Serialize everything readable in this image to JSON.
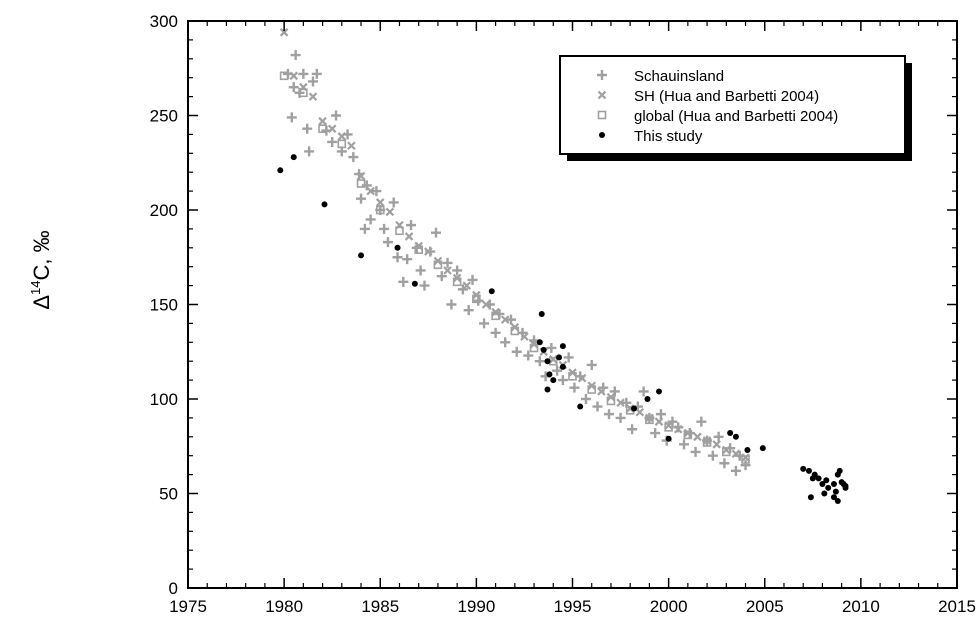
{
  "chart_data": {
    "type": "scatter",
    "ylabel": {
      "prefix": "Δ",
      "superscript": "14",
      "suffix": "C, ‰"
    },
    "xlim": [
      1975,
      2015
    ],
    "ylim": [
      0,
      300
    ],
    "x_ticks": [
      1975,
      1980,
      1985,
      1990,
      1995,
      2000,
      2005,
      2010,
      2015
    ],
    "y_ticks": [
      0,
      50,
      100,
      150,
      200,
      250,
      300
    ],
    "legend": {
      "position": "top-right",
      "entries": [
        {
          "label": "Schauinsland",
          "marker": "plus",
          "color": "#a0a0a0"
        },
        {
          "label": "SH (Hua and Barbetti 2004)",
          "marker": "x",
          "color": "#a0a0a0"
        },
        {
          "label": "global (Hua and Barbetti 2004)",
          "marker": "square",
          "color": "#a0a0a0"
        },
        {
          "label": "This study",
          "marker": "dot",
          "color": "#000000"
        }
      ]
    },
    "series": [
      {
        "name": "Schauinsland",
        "marker": "plus",
        "color": "#a0a0a0",
        "points": [
          [
            1980.2,
            272
          ],
          [
            1980.4,
            249
          ],
          [
            1980.5,
            265
          ],
          [
            1980.6,
            282
          ],
          [
            1980.8,
            262
          ],
          [
            1981.0,
            272
          ],
          [
            1981.2,
            243
          ],
          [
            1981.3,
            231
          ],
          [
            1981.5,
            268
          ],
          [
            1981.7,
            272
          ],
          [
            1982.2,
            242
          ],
          [
            1982.5,
            236
          ],
          [
            1982.7,
            250
          ],
          [
            1983.0,
            231
          ],
          [
            1983.3,
            240
          ],
          [
            1983.6,
            228
          ],
          [
            1983.9,
            219
          ],
          [
            1984.0,
            206
          ],
          [
            1984.2,
            190
          ],
          [
            1984.3,
            213
          ],
          [
            1984.5,
            195
          ],
          [
            1984.8,
            210
          ],
          [
            1985.0,
            200
          ],
          [
            1985.2,
            190
          ],
          [
            1985.4,
            183
          ],
          [
            1985.7,
            204
          ],
          [
            1985.9,
            175
          ],
          [
            1986.2,
            162
          ],
          [
            1986.4,
            174
          ],
          [
            1986.6,
            192
          ],
          [
            1986.9,
            180
          ],
          [
            1987.1,
            168
          ],
          [
            1987.3,
            160
          ],
          [
            1987.6,
            178
          ],
          [
            1987.9,
            188
          ],
          [
            1988.2,
            165
          ],
          [
            1988.5,
            172
          ],
          [
            1988.7,
            150
          ],
          [
            1989.0,
            168
          ],
          [
            1989.3,
            158
          ],
          [
            1989.6,
            147
          ],
          [
            1989.8,
            163
          ],
          [
            1990.1,
            152
          ],
          [
            1990.4,
            140
          ],
          [
            1990.7,
            150
          ],
          [
            1991.0,
            135
          ],
          [
            1991.2,
            145
          ],
          [
            1991.5,
            130
          ],
          [
            1991.8,
            142
          ],
          [
            1992.1,
            125
          ],
          [
            1992.4,
            135
          ],
          [
            1992.7,
            123
          ],
          [
            1993.0,
            131
          ],
          [
            1993.3,
            120
          ],
          [
            1993.6,
            112
          ],
          [
            1993.9,
            127
          ],
          [
            1994.2,
            115
          ],
          [
            1994.5,
            110
          ],
          [
            1994.8,
            122
          ],
          [
            1995.1,
            106
          ],
          [
            1995.4,
            112
          ],
          [
            1995.7,
            100
          ],
          [
            1996.0,
            118
          ],
          [
            1996.3,
            96
          ],
          [
            1996.6,
            106
          ],
          [
            1996.9,
            92
          ],
          [
            1997.2,
            104
          ],
          [
            1997.5,
            90
          ],
          [
            1997.8,
            98
          ],
          [
            1998.1,
            84
          ],
          [
            1998.4,
            96
          ],
          [
            1998.7,
            104
          ],
          [
            1999.0,
            90
          ],
          [
            1999.3,
            82
          ],
          [
            1999.6,
            92
          ],
          [
            1999.9,
            78
          ],
          [
            2000.2,
            88
          ],
          [
            2000.5,
            85
          ],
          [
            2000.8,
            76
          ],
          [
            2001.1,
            82
          ],
          [
            2001.4,
            72
          ],
          [
            2001.7,
            88
          ],
          [
            2002.0,
            78
          ],
          [
            2002.3,
            70
          ],
          [
            2002.6,
            80
          ],
          [
            2002.9,
            66
          ],
          [
            2003.2,
            74
          ],
          [
            2003.5,
            62
          ],
          [
            2003.7,
            70
          ],
          [
            2004.0,
            65
          ]
        ]
      },
      {
        "name": "SH (Hua and Barbetti 2004)",
        "marker": "x",
        "color": "#a0a0a0",
        "points": [
          [
            1980.0,
            294
          ],
          [
            1980.5,
            271
          ],
          [
            1981.0,
            265
          ],
          [
            1981.5,
            260
          ],
          [
            1982.0,
            247
          ],
          [
            1982.5,
            243
          ],
          [
            1983.0,
            239
          ],
          [
            1983.5,
            234
          ],
          [
            1984.0,
            218
          ],
          [
            1984.5,
            210
          ],
          [
            1985.0,
            204
          ],
          [
            1985.5,
            199
          ],
          [
            1986.0,
            192
          ],
          [
            1986.5,
            186
          ],
          [
            1987.0,
            181
          ],
          [
            1987.5,
            178
          ],
          [
            1988.0,
            173
          ],
          [
            1988.5,
            168
          ],
          [
            1989.0,
            164
          ],
          [
            1989.5,
            160
          ],
          [
            1990.0,
            155
          ],
          [
            1990.5,
            150
          ],
          [
            1991.0,
            146
          ],
          [
            1991.5,
            142
          ],
          [
            1992.0,
            138
          ],
          [
            1992.5,
            133
          ],
          [
            1993.0,
            129
          ],
          [
            1993.5,
            125
          ],
          [
            1994.0,
            121
          ],
          [
            1994.5,
            118
          ],
          [
            1995.0,
            114
          ],
          [
            1995.5,
            111
          ],
          [
            1996.0,
            107
          ],
          [
            1996.5,
            104
          ],
          [
            1997.0,
            101
          ],
          [
            1997.5,
            98
          ],
          [
            1998.0,
            95
          ],
          [
            1998.5,
            93
          ],
          [
            1999.0,
            90
          ],
          [
            1999.5,
            88
          ],
          [
            2000.0,
            86
          ],
          [
            2000.5,
            84
          ],
          [
            2001.0,
            82
          ],
          [
            2001.5,
            80
          ],
          [
            2002.0,
            78
          ],
          [
            2002.5,
            76
          ],
          [
            2003.0,
            73
          ],
          [
            2003.5,
            71
          ],
          [
            2004.0,
            69
          ]
        ]
      },
      {
        "name": "global (Hua and Barbetti 2004)",
        "marker": "square",
        "color": "#a0a0a0",
        "points": [
          [
            1980.0,
            271
          ],
          [
            1981.0,
            262
          ],
          [
            1982.0,
            243
          ],
          [
            1983.0,
            235
          ],
          [
            1984.0,
            214
          ],
          [
            1985.0,
            200
          ],
          [
            1986.0,
            189
          ],
          [
            1987.0,
            179
          ],
          [
            1988.0,
            171
          ],
          [
            1989.0,
            162
          ],
          [
            1990.0,
            153
          ],
          [
            1991.0,
            144
          ],
          [
            1992.0,
            136
          ],
          [
            1993.0,
            127
          ],
          [
            1994.0,
            120
          ],
          [
            1995.0,
            112
          ],
          [
            1996.0,
            105
          ],
          [
            1997.0,
            99
          ],
          [
            1998.0,
            94
          ],
          [
            1999.0,
            89
          ],
          [
            2000.0,
            85
          ],
          [
            2001.0,
            81
          ],
          [
            2002.0,
            77
          ],
          [
            2003.0,
            72
          ],
          [
            2004.0,
            68
          ]
        ]
      },
      {
        "name": "This study",
        "marker": "dot",
        "color": "#000000",
        "points": [
          [
            1979.8,
            221
          ],
          [
            1980.5,
            228
          ],
          [
            1982.1,
            203
          ],
          [
            1984.0,
            176
          ],
          [
            1985.9,
            180
          ],
          [
            1986.8,
            161
          ],
          [
            1990.8,
            157
          ],
          [
            1993.4,
            145
          ],
          [
            1993.3,
            130
          ],
          [
            1993.5,
            126
          ],
          [
            1993.7,
            120
          ],
          [
            1993.8,
            113
          ],
          [
            1993.7,
            105
          ],
          [
            1994.0,
            110
          ],
          [
            1994.5,
            128
          ],
          [
            1994.3,
            122
          ],
          [
            1994.5,
            117
          ],
          [
            1995.4,
            96
          ],
          [
            1998.2,
            95
          ],
          [
            1998.9,
            100
          ],
          [
            1999.5,
            104
          ],
          [
            2000.0,
            79
          ],
          [
            2003.2,
            82
          ],
          [
            2003.5,
            80
          ],
          [
            2004.1,
            73
          ],
          [
            2004.9,
            74
          ],
          [
            2007.0,
            63
          ],
          [
            2007.3,
            62
          ],
          [
            2007.5,
            58
          ],
          [
            2007.6,
            60
          ],
          [
            2007.8,
            58
          ],
          [
            2008.0,
            55
          ],
          [
            2008.2,
            57
          ],
          [
            2008.3,
            53
          ],
          [
            2008.6,
            55
          ],
          [
            2008.7,
            51
          ],
          [
            2008.8,
            60
          ],
          [
            2009.0,
            56
          ],
          [
            2009.1,
            55
          ],
          [
            2009.2,
            53
          ],
          [
            2007.4,
            48
          ],
          [
            2008.1,
            50
          ],
          [
            2008.6,
            48
          ],
          [
            2008.8,
            46
          ],
          [
            2009.2,
            54
          ],
          [
            2008.9,
            62
          ]
        ]
      }
    ]
  }
}
